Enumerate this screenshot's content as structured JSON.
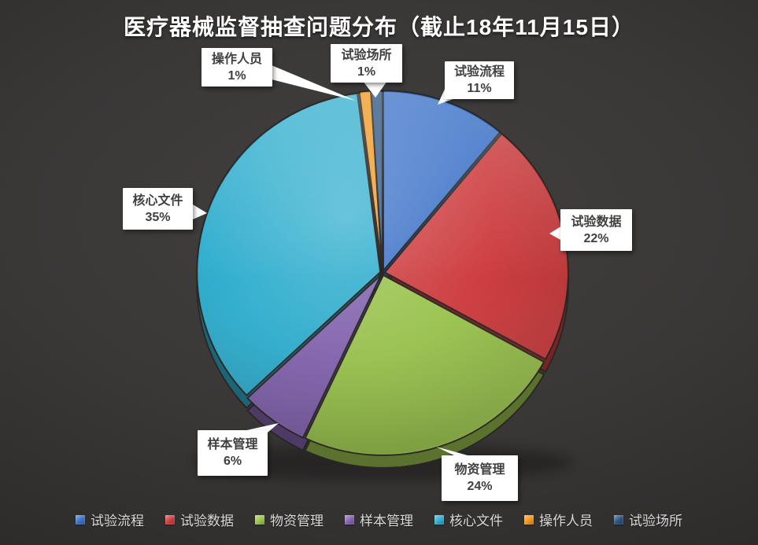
{
  "chart_data": {
    "type": "pie",
    "title": "医疗器械监督抽查问题分布（截止18年11月15日）",
    "categories": [
      "试验流程",
      "试验数据",
      "物资管理",
      "样本管理",
      "核心文件",
      "操作人员",
      "试验场所"
    ],
    "values": [
      11,
      22,
      24,
      6,
      35,
      1,
      1
    ],
    "unit": "%",
    "colors": [
      "#3C72C8",
      "#CE3E40",
      "#9BC450",
      "#8465B0",
      "#31AECE",
      "#F0971F",
      "#2A5381"
    ],
    "slice_order": "clockwise-from-top",
    "style": "3d-glossy-pie",
    "legend_position": "bottom",
    "data_labels": "category-name-and-percent-in-white-callouts",
    "title_color": "#FFFFFF",
    "background_color": "#343332",
    "callout_bg": "#FFFFFF",
    "callout_text_color": "#404040",
    "legend_text_color": "#D9D9D9"
  }
}
